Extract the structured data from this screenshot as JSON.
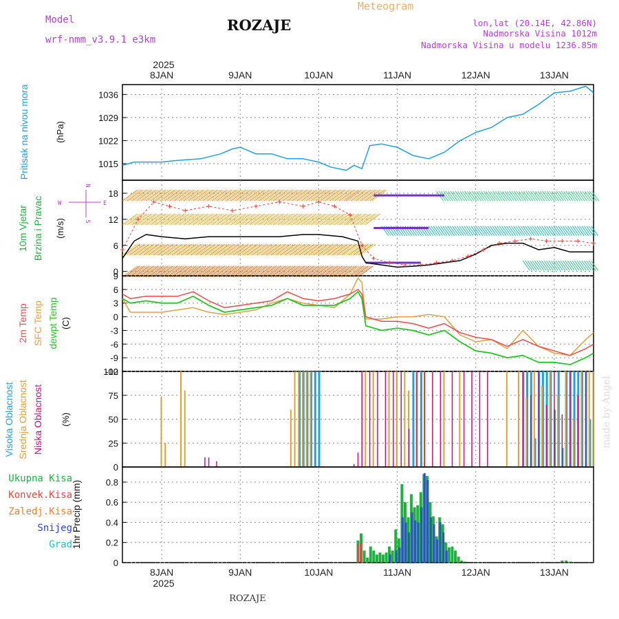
{
  "header": {
    "model_label": "Model",
    "model_name": "wrf-nmm_v3.9.1  e3km",
    "station": "ROZAJE",
    "product": "Meteogram",
    "coords": "lon,lat (20.14E, 42.86N)",
    "elevation": "Nadmorska Visina 1012m",
    "model_elevation": "Nadmorska Visina u modelu 1236.85m",
    "footer_station": "ROZAJE",
    "watermark": "made by Angel"
  },
  "time_axis": {
    "year": "2025",
    "ticks": [
      {
        "label": "8JAN",
        "day": 0
      },
      {
        "label": "9JAN",
        "day": 1
      },
      {
        "label": "10JAN",
        "day": 2
      },
      {
        "label": "11JAN",
        "day": 3
      },
      {
        "label": "12JAN",
        "day": 4
      },
      {
        "label": "13JAN",
        "day": 5
      }
    ],
    "range_days": [
      -0.5,
      5.5
    ]
  },
  "colors": {
    "pressure": "#1ca0e0",
    "wind_mean": "#000000",
    "wind_gust": "#f03c3c",
    "temp_2m": "#f04848",
    "temp_sfc": "#e0a040",
    "dewpoint": "#20c820",
    "cloud_high": "#20a0e0",
    "cloud_mid": "#e0a030",
    "cloud_low": "#c01080",
    "precip_total": "#20b040",
    "precip_conv": "#f04040",
    "precip_frz": "#f08030",
    "precip_snow": "#3040e0",
    "precip_grad": "#20c0c0"
  },
  "chart_data": [
    {
      "type": "line",
      "panel": "pressure",
      "title": "Pritisak na nivou mora",
      "ylabel": "(hPa)",
      "ylim": [
        1010,
        1039
      ],
      "yticks": [
        "1015",
        "1022",
        "1029",
        "1036"
      ],
      "series": [
        {
          "name": "Pritisak",
          "x": [
            -0.5,
            -0.35,
            -0.2,
            0,
            0.2,
            0.5,
            0.75,
            0.9,
            1,
            1.2,
            1.4,
            1.6,
            1.8,
            2,
            2.15,
            2.35,
            2.45,
            2.5,
            2.55,
            2.65,
            2.8,
            3,
            3.2,
            3.4,
            3.6,
            3.8,
            4,
            4.2,
            4.4,
            4.6,
            4.8,
            5,
            5.2,
            5.4,
            5.5
          ],
          "values": [
            1014.5,
            1015.5,
            1015.5,
            1015.5,
            1016,
            1016.5,
            1018,
            1019.5,
            1020,
            1018,
            1018,
            1016.5,
            1016.5,
            1015.5,
            1014,
            1013,
            1014.5,
            1014,
            1013.5,
            1020.5,
            1021,
            1020,
            1017.5,
            1016.5,
            1018.5,
            1022,
            1024.5,
            1026,
            1029,
            1030,
            1033,
            1036.5,
            1037,
            1038.5,
            1036.5
          ]
        }
      ]
    },
    {
      "type": "line",
      "panel": "wind",
      "title": "10m Vjetar",
      "title2": "Brzina i Pravac",
      "ylabel": "(m/s)",
      "compass": {
        "n": "N",
        "s": "S",
        "e": "E",
        "w": "W"
      },
      "ylim": [
        -1,
        21
      ],
      "yticks": [
        "0",
        "6",
        "12",
        "18"
      ],
      "series": [
        {
          "name": "Brzina",
          "x": [
            -0.5,
            -0.35,
            -0.2,
            0,
            0.3,
            0.6,
            0.9,
            1.2,
            1.5,
            1.8,
            2,
            2.3,
            2.5,
            2.55,
            2.6,
            2.8,
            3,
            3.2,
            3.4,
            3.6,
            3.8,
            4,
            4.2,
            4.4,
            4.6,
            4.8,
            5,
            5.2,
            5.5
          ],
          "values": [
            3,
            7,
            8.5,
            8,
            7.5,
            8,
            8,
            8,
            8,
            8.5,
            8.5,
            8,
            7,
            3.5,
            2,
            1.5,
            1,
            1.2,
            1.5,
            2,
            2.5,
            4,
            6,
            6.5,
            6.5,
            5,
            5.5,
            4.5,
            4.5
          ]
        },
        {
          "name": "Udari",
          "x": [
            -0.5,
            -0.3,
            -0.1,
            0.1,
            0.3,
            0.6,
            0.9,
            1.2,
            1.5,
            1.8,
            2,
            2.2,
            2.4,
            2.55,
            2.7,
            2.9,
            3.1,
            3.3,
            3.5,
            3.7,
            3.9,
            4.1,
            4.3,
            4.5,
            4.7,
            4.9,
            5.1,
            5.3,
            5.5
          ],
          "values": [
            5,
            12,
            16,
            15,
            14,
            15,
            14,
            15,
            16,
            15,
            16,
            15,
            13,
            6,
            3,
            2,
            1.5,
            1.5,
            2,
            2.5,
            3.5,
            5,
            6.5,
            7,
            7.5,
            7,
            7,
            7,
            6.5
          ]
        }
      ]
    },
    {
      "type": "line",
      "panel": "temperature",
      "labels": [
        "2m Temp",
        "SFC Temp",
        "dewpt Temp"
      ],
      "ylabel": "(C)",
      "ylim": [
        -12,
        9
      ],
      "yticks": [
        "9",
        "6",
        "3",
        "0",
        "-3",
        "-6",
        "-9",
        "-12"
      ],
      "series": [
        {
          "name": "2m Temp",
          "x": [
            -0.5,
            -0.4,
            -0.2,
            0,
            0.2,
            0.4,
            0.6,
            0.8,
            1,
            1.2,
            1.4,
            1.6,
            1.8,
            2,
            2.2,
            2.4,
            2.5,
            2.55,
            2.6,
            2.8,
            3,
            3.2,
            3.4,
            3.6,
            3.8,
            4,
            4.2,
            4.4,
            4.6,
            4.8,
            5,
            5.2,
            5.4,
            5.5
          ],
          "values": [
            5,
            4,
            4.5,
            4.5,
            4.5,
            5.5,
            3.5,
            2,
            2.5,
            3,
            3.5,
            5.5,
            4,
            3.5,
            4,
            5,
            6,
            5,
            0,
            -1,
            -1,
            -1.5,
            -2.5,
            -1.5,
            -3.5,
            -4.5,
            -5,
            -6.5,
            -5,
            -6.5,
            -7.5,
            -8.5,
            -7,
            -6
          ]
        },
        {
          "name": "SFC Temp",
          "x": [
            -0.5,
            -0.4,
            -0.2,
            0,
            0.2,
            0.4,
            0.6,
            0.8,
            1,
            1.2,
            1.4,
            1.6,
            1.8,
            2,
            2.2,
            2.4,
            2.5,
            2.55,
            2.6,
            2.8,
            3,
            3.2,
            3.4,
            3.6,
            3.8,
            4,
            4.2,
            4.4,
            4.6,
            4.8,
            5,
            5.2,
            5.4,
            5.5
          ],
          "values": [
            4,
            1,
            1,
            1,
            1.5,
            2,
            1,
            0.5,
            1,
            1.5,
            3,
            4,
            3,
            2.5,
            2,
            5,
            8.5,
            7.5,
            -0.5,
            -0.5,
            0,
            0,
            0.5,
            0,
            -4,
            -5.5,
            -5,
            -7,
            -3,
            -6.5,
            -8,
            -8.5,
            -5,
            -3.5
          ]
        },
        {
          "name": "dewpt Temp",
          "x": [
            -0.5,
            -0.4,
            -0.2,
            0,
            0.2,
            0.4,
            0.6,
            0.8,
            1,
            1.2,
            1.4,
            1.6,
            1.8,
            2,
            2.2,
            2.4,
            2.5,
            2.55,
            2.6,
            2.8,
            3,
            3.2,
            3.4,
            3.6,
            3.8,
            4,
            4.2,
            4.4,
            4.6,
            4.8,
            5,
            5.2,
            5.4,
            5.5
          ],
          "values": [
            4,
            3,
            3.5,
            3,
            3,
            4.5,
            2.5,
            1,
            1.5,
            2,
            2.5,
            4,
            2.5,
            2.5,
            2.5,
            4,
            5.5,
            4,
            -2,
            -3,
            -2.5,
            -3,
            -4,
            -3,
            -5.5,
            -7.5,
            -8,
            -9,
            -8.5,
            -10,
            -10,
            -10.5,
            -9,
            -8
          ]
        }
      ]
    },
    {
      "type": "bar",
      "panel": "clouds",
      "labels": [
        "Visoka Oblacnost",
        "Srednja Oblacnost",
        "Niska Oblacnost"
      ],
      "ylabel": "(%)",
      "ylim": [
        0,
        100
      ],
      "yticks": [
        "100",
        "75",
        "50",
        "25",
        "0"
      ],
      "series": [
        {
          "name": "Visoka",
          "x": [
            1.75,
            1.8,
            1.85,
            1.9,
            1.95,
            2,
            3.2,
            3.3,
            4.6,
            4.65,
            4.7,
            4.75,
            4.8,
            4.85,
            4.9,
            4.95,
            5,
            5.05,
            5.1,
            5.15,
            5.2,
            5.25,
            5.3,
            5.35,
            5.4,
            5.45
          ],
          "values": [
            100,
            100,
            100,
            100,
            100,
            100,
            100,
            100,
            100,
            100,
            100,
            30,
            100,
            100,
            100,
            100,
            60,
            100,
            20,
            100,
            100,
            100,
            100,
            100,
            100,
            50
          ]
        },
        {
          "name": "Srednja",
          "x": [
            0.0,
            0.05,
            0.25,
            0.3,
            1.65,
            1.7,
            1.75,
            1.8,
            1.85,
            1.9,
            2.6,
            2.7,
            2.9,
            3.0,
            3.1,
            3.15,
            3.25,
            3.35,
            3.6,
            3.8,
            4.4,
            4.55,
            4.65,
            4.75,
            4.85,
            4.95,
            5.05,
            5.15,
            5.25,
            5.35,
            5.45,
            5.5
          ],
          "values": [
            73,
            25,
            100,
            80,
            60,
            100,
            100,
            100,
            100,
            100,
            100,
            100,
            100,
            100,
            100,
            80,
            100,
            100,
            100,
            100,
            100,
            100,
            73,
            100,
            85,
            100,
            75,
            100,
            50,
            100,
            100,
            100
          ]
        },
        {
          "name": "Niska",
          "x": [
            0.55,
            0.6,
            0.7,
            2.45,
            2.5,
            2.55,
            2.65,
            2.75,
            2.85,
            2.95,
            3.05,
            3.15,
            3.25,
            3.35,
            3.45,
            3.55,
            3.7,
            3.85,
            3.95,
            4.05,
            4.15,
            4.6,
            4.7,
            4.8,
            4.9,
            5.0,
            5.1,
            5.2,
            5.3,
            5.4
          ],
          "values": [
            10,
            10,
            6,
            3,
            15,
            100,
            100,
            100,
            100,
            100,
            100,
            40,
            100,
            100,
            100,
            100,
            100,
            100,
            100,
            100,
            100,
            100,
            75,
            100,
            65,
            100,
            55,
            100,
            75,
            100
          ]
        }
      ]
    },
    {
      "type": "bar",
      "panel": "precip",
      "ylabel": "1hr Precip (mm)",
      "ylim": [
        0,
        0.95
      ],
      "yticks": [
        "0",
        "0.2",
        "0.4",
        "0.6",
        "0.8"
      ],
      "legend": [
        "Ukupna Kisa",
        "Konvek.Kisa",
        "Zaledj.Kisa",
        "Snijeg",
        "Grad"
      ],
      "series": [
        {
          "name": "Ukupna Kisa",
          "x": [
            2.5,
            2.54,
            2.58,
            2.62,
            2.66,
            2.7,
            2.74,
            2.78,
            2.82,
            2.86,
            2.9,
            2.94,
            2.98,
            3.02,
            3.06,
            3.1,
            3.14,
            3.18,
            3.22,
            3.26,
            3.3,
            3.34,
            3.38,
            3.42,
            3.46,
            3.5,
            3.54,
            3.58,
            3.62,
            3.66,
            3.7,
            3.74,
            3.78,
            3.82,
            3.86,
            5.1,
            5.15,
            5.2
          ],
          "values": [
            0.22,
            0.29,
            0.12,
            0.05,
            0.16,
            0.12,
            0.08,
            0.1,
            0.08,
            0.1,
            0.16,
            0.12,
            0.33,
            0.24,
            0.78,
            0.6,
            0.45,
            0.68,
            0.55,
            0.57,
            0.7,
            0.88,
            0.86,
            0.6,
            0.46,
            0.26,
            0.45,
            0.38,
            0.2,
            0.15,
            0.16,
            0.12,
            0.06,
            0.02,
            0.01,
            0.02,
            0.02,
            0.01
          ]
        },
        {
          "name": "Konvek.Kisa",
          "x": [
            2.5,
            2.54
          ],
          "values": [
            0.18,
            0.2
          ]
        },
        {
          "name": "Snijeg",
          "x": [
            2.9,
            2.98,
            3.02,
            3.06,
            3.1,
            3.14,
            3.18,
            3.22,
            3.26,
            3.3,
            3.34,
            3.38,
            3.42,
            3.46,
            3.5,
            3.54,
            3.58,
            3.62
          ],
          "values": [
            0.08,
            0.12,
            0.15,
            0.45,
            0.4,
            0.3,
            0.5,
            0.42,
            0.4,
            0.55,
            0.89,
            0.82,
            0.45,
            0.38,
            0.23,
            0.4,
            0.3,
            0.12
          ]
        }
      ]
    }
  ]
}
